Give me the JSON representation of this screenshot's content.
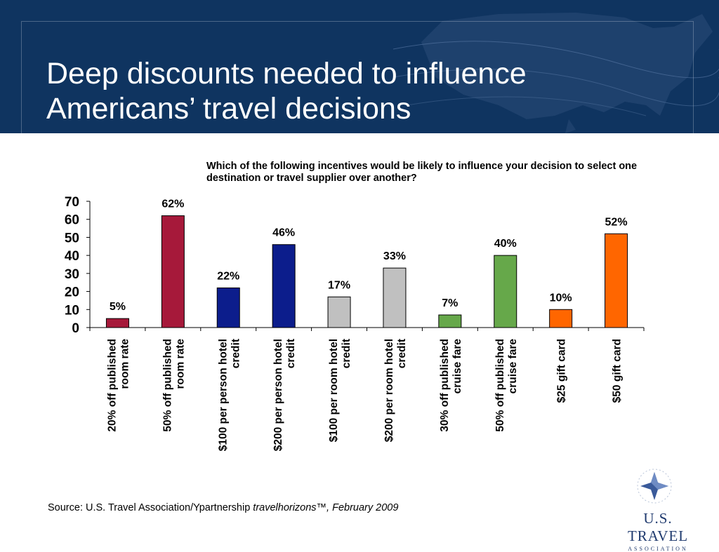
{
  "header": {
    "title_line1": "Deep discounts needed to influence",
    "title_line2": "Americans’ travel decisions"
  },
  "question": "Which of the following incentives would be likely to influence your decision to select one destination or travel supplier over another?",
  "source": {
    "prefix": "Source:  U.S. Travel Association/Ypartnership ",
    "italic": "travelhorizons™, February 2009"
  },
  "logo": {
    "line1": "U.S. TRAVEL",
    "line2": "ASSOCIATION",
    "icon": "star-compass-icon"
  },
  "chart_data": {
    "type": "bar",
    "title": "",
    "xlabel": "",
    "ylabel": "",
    "ylim": [
      0,
      70
    ],
    "yticks": [
      "0",
      "10",
      "20",
      "30",
      "40",
      "50",
      "60",
      "70"
    ],
    "grid": false,
    "legend": "none",
    "categories": [
      [
        "20% off published",
        "room rate"
      ],
      [
        "50% off published",
        "room rate"
      ],
      [
        "$100 per person hotel",
        "credit"
      ],
      [
        "$200 per person hotel",
        "credit"
      ],
      [
        "$100 per room hotel",
        "credit"
      ],
      [
        "$200 per room hotel",
        "credit"
      ],
      [
        "30% off published",
        "cruise fare"
      ],
      [
        "50% off published",
        "cruise fare"
      ],
      [
        "$25 gift card"
      ],
      [
        "$50 gift card"
      ]
    ],
    "values": [
      5,
      62,
      22,
      46,
      17,
      33,
      7,
      40,
      10,
      52
    ],
    "data_labels": [
      "5%",
      "62%",
      "22%",
      "46%",
      "17%",
      "33%",
      "7%",
      "40%",
      "10%",
      "52%"
    ],
    "colors": [
      "#a6193a",
      "#a6193a",
      "#0c1d8c",
      "#0c1d8c",
      "#c0c0c0",
      "#c0c0c0",
      "#66a84a",
      "#66a84a",
      "#ff6600",
      "#ff6600"
    ]
  }
}
